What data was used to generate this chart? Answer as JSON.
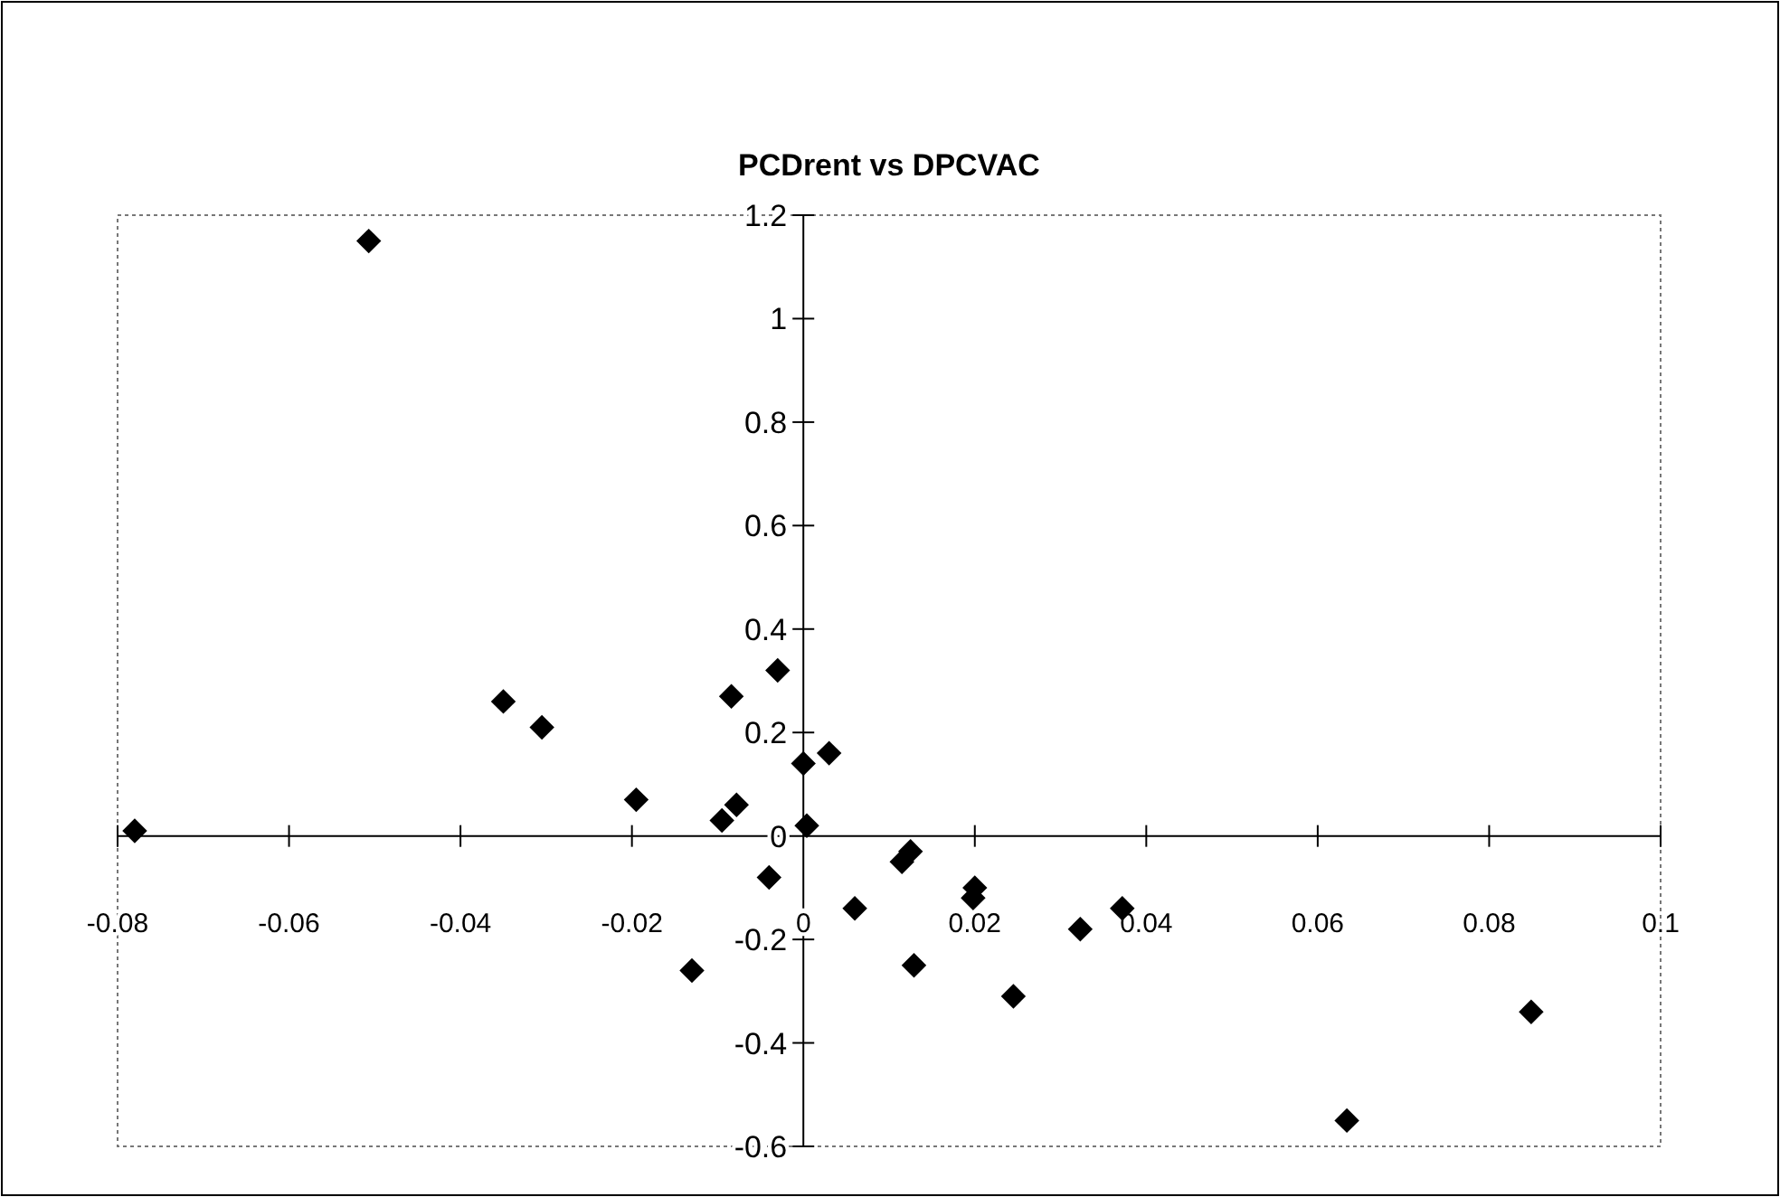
{
  "chart_data": {
    "type": "scatter",
    "title": "PCDrent vs DPCVAC",
    "marker": "diamond",
    "xlim": [
      -0.08,
      0.1
    ],
    "xticks": [
      -0.08,
      -0.06,
      -0.04,
      -0.02,
      0,
      0.02,
      0.04,
      0.06,
      0.08,
      0.1
    ],
    "ylim": [
      -0.6,
      1.2
    ],
    "yticks": [
      -0.6,
      -0.4,
      -0.2,
      0,
      0.2,
      0.4,
      0.6,
      0.8,
      1,
      1.2
    ],
    "series": [
      {
        "color": "#000000",
        "x": [
          -0.078,
          -0.0507,
          -0.035,
          -0.0305,
          -0.0195,
          -0.0095,
          -0.0078,
          -0.0084,
          -0.003,
          0,
          0.003,
          0.0004,
          -0.004,
          -0.013,
          0.006,
          0.0115,
          0.0125,
          0.0198,
          0.02,
          0.0129,
          0.0245,
          0.0323,
          0.0372,
          0.0849,
          0.0634
        ],
        "values": [
          0.01,
          1.15,
          0.26,
          0.21,
          0.07,
          0.03,
          0.06,
          0.27,
          0.32,
          0.14,
          0.16,
          0.02,
          -0.08,
          -0.26,
          -0.14,
          -0.05,
          -0.03,
          -0.12,
          -0.1,
          -0.25,
          -0.31,
          -0.18,
          -0.14,
          -0.34,
          -0.55
        ]
      }
    ]
  }
}
